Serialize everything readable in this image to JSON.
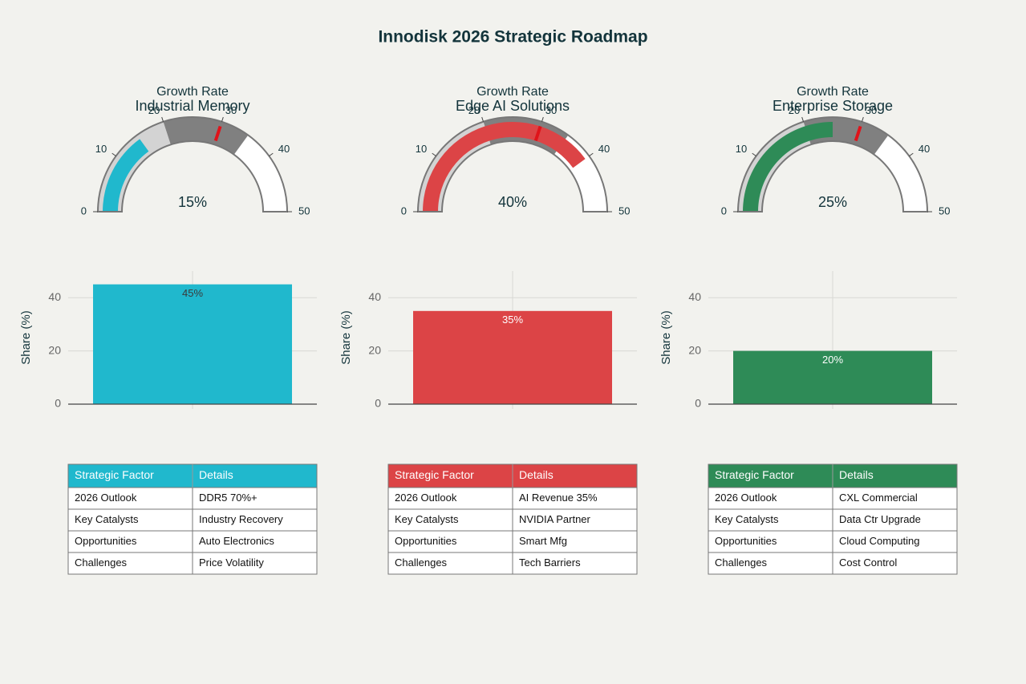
{
  "title": "Innodisk 2026 Strategic Roadmap",
  "chart_data": [
    {
      "type": "gauge",
      "title": "Growth Rate",
      "subtitle": "Industrial Memory",
      "value": 15,
      "value_label": "15%",
      "color": "#20b8cd",
      "range": [
        0,
        50
      ],
      "ticks": [
        0,
        10,
        20,
        30,
        40,
        50
      ],
      "threshold": 30,
      "threshold_color": "#e0131a",
      "steps": [
        {
          "range": [
            0,
            20
          ],
          "color": "#d3d3d3"
        },
        {
          "range": [
            20,
            35
          ],
          "color": "#808080"
        }
      ]
    },
    {
      "type": "gauge",
      "title": "Growth Rate",
      "subtitle": "Edge AI Solutions",
      "value": 40,
      "value_label": "40%",
      "color": "#dc4446",
      "range": [
        0,
        50
      ],
      "ticks": [
        0,
        10,
        20,
        30,
        40,
        50
      ],
      "threshold": 30,
      "threshold_color": "#e0131a",
      "steps": [
        {
          "range": [
            0,
            20
          ],
          "color": "#d3d3d3"
        },
        {
          "range": [
            20,
            35
          ],
          "color": "#808080"
        }
      ]
    },
    {
      "type": "gauge",
      "title": "Growth Rate",
      "subtitle": "Enterprise Storage",
      "value": 25,
      "value_label": "25%",
      "color": "#2e8b57",
      "range": [
        0,
        50
      ],
      "ticks": [
        0,
        10,
        20,
        30,
        40,
        50
      ],
      "threshold": 30,
      "threshold_color": "#e0131a",
      "steps": [
        {
          "range": [
            0,
            20
          ],
          "color": "#d3d3d3"
        },
        {
          "range": [
            20,
            35
          ],
          "color": "#808080"
        }
      ]
    },
    {
      "type": "bar",
      "ylabel": "Share (%)",
      "categories": [
        null
      ],
      "values": [
        45
      ],
      "value_labels": [
        "45%"
      ],
      "value_label_color": "#3a3a3a",
      "color": "#20b8cd",
      "ylim": [
        0,
        50
      ],
      "yticks": [
        0,
        20,
        40
      ],
      "grid": true
    },
    {
      "type": "bar",
      "ylabel": "Share (%)",
      "categories": [
        null
      ],
      "values": [
        35
      ],
      "value_labels": [
        "35%"
      ],
      "value_label_color": "#ffffff",
      "color": "#dc4446",
      "ylim": [
        0,
        50
      ],
      "yticks": [
        0,
        20,
        40
      ],
      "grid": true
    },
    {
      "type": "bar",
      "ylabel": "Share (%)",
      "categories": [
        null
      ],
      "values": [
        20
      ],
      "value_labels": [
        "20%"
      ],
      "value_label_color": "#ffffff",
      "color": "#2e8b57",
      "ylim": [
        0,
        50
      ],
      "yticks": [
        0,
        20,
        40
      ],
      "grid": true
    }
  ],
  "tables": [
    {
      "color": "#20b8cd",
      "header": [
        "Strategic Factor",
        "Details"
      ],
      "rows": [
        [
          "2026 Outlook",
          "DDR5 70%+"
        ],
        [
          "Key Catalysts",
          "Industry Recovery"
        ],
        [
          "Opportunities",
          "Auto Electronics"
        ],
        [
          "Challenges",
          "Price Volatility"
        ]
      ]
    },
    {
      "color": "#dc4446",
      "header": [
        "Strategic Factor",
        "Details"
      ],
      "rows": [
        [
          "2026 Outlook",
          "AI Revenue 35%"
        ],
        [
          "Key Catalysts",
          "NVIDIA Partner"
        ],
        [
          "Opportunities",
          "Smart Mfg"
        ],
        [
          "Challenges",
          "Tech Barriers"
        ]
      ]
    },
    {
      "color": "#2e8b57",
      "header": [
        "Strategic Factor",
        "Details"
      ],
      "rows": [
        [
          "2026 Outlook",
          "CXL Commercial"
        ],
        [
          "Key Catalysts",
          "Data Ctr Upgrade"
        ],
        [
          "Opportunities",
          "Cloud Computing"
        ],
        [
          "Challenges",
          "Cost Control"
        ]
      ]
    }
  ]
}
